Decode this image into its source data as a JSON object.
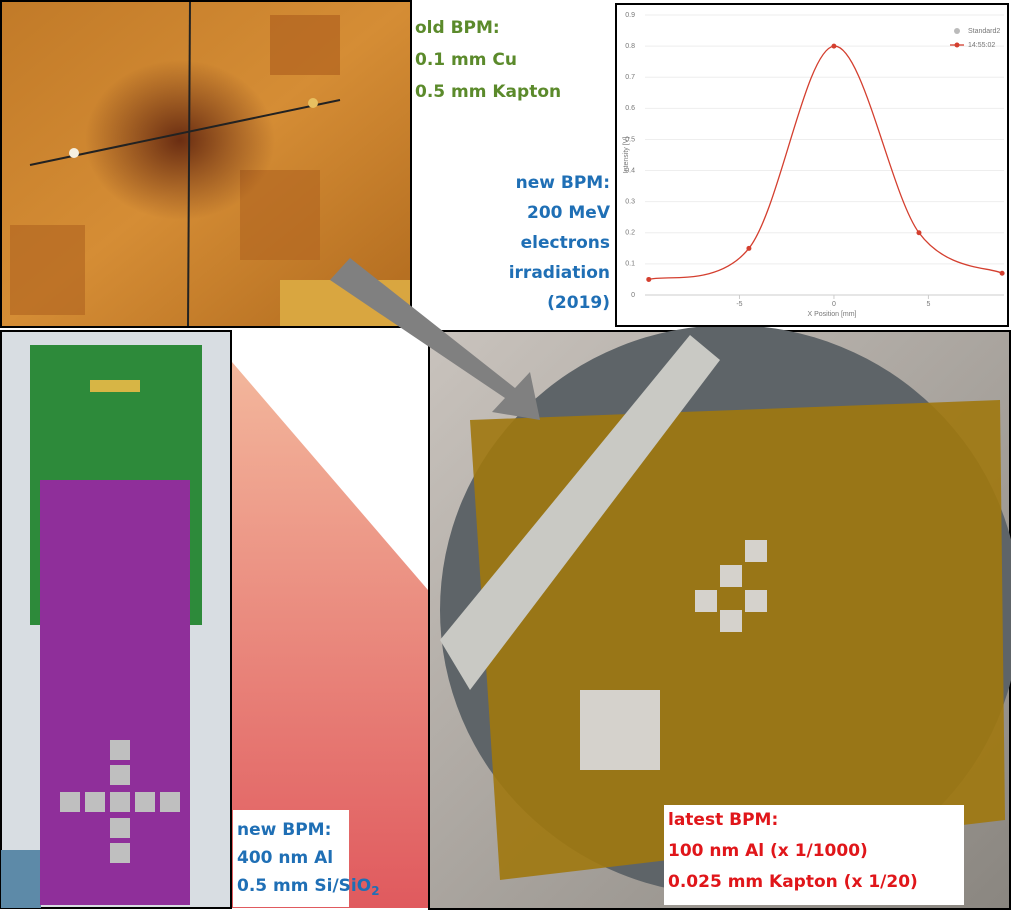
{
  "chart_data": {
    "type": "line",
    "xlabel": "X Position [mm]",
    "ylabel": "Intensity [V]",
    "x": [
      -9.8,
      -4.5,
      0,
      4.5,
      8.9
    ],
    "series": [
      {
        "name": "Standard2",
        "color": "#bbbbbb",
        "values": [
          null,
          null,
          null,
          null,
          null
        ]
      },
      {
        "name": "14:55:02",
        "color": "#d43f2f",
        "values": [
          0.05,
          0.15,
          0.8,
          0.2,
          0.07
        ]
      }
    ],
    "xlim": [
      -10,
      9
    ],
    "xticks": [
      -5,
      0,
      5
    ],
    "ylim": [
      0,
      0.9
    ],
    "yticks": [
      0,
      0.1,
      0.2,
      0.3,
      0.4,
      0.5,
      0.6,
      0.7,
      0.8,
      0.9
    ]
  },
  "old_bpm": [
    "old BPM:",
    "0.1 mm Cu",
    "0.5 mm Kapton"
  ],
  "new_bpm_irradiation": [
    "new BPM:",
    "200 MeV",
    "electrons",
    "irradiation",
    "(2019)"
  ],
  "new_bpm_al": {
    "lines": [
      "new BPM:",
      "400 nm Al"
    ],
    "last": {
      "text": "0.5 mm Si/SiO",
      "sub": "2"
    }
  },
  "latest_bpm": [
    "latest BPM:",
    "100 nm Al (x 1/1000)",
    "0.025 mm Kapton (x 1/20)"
  ]
}
